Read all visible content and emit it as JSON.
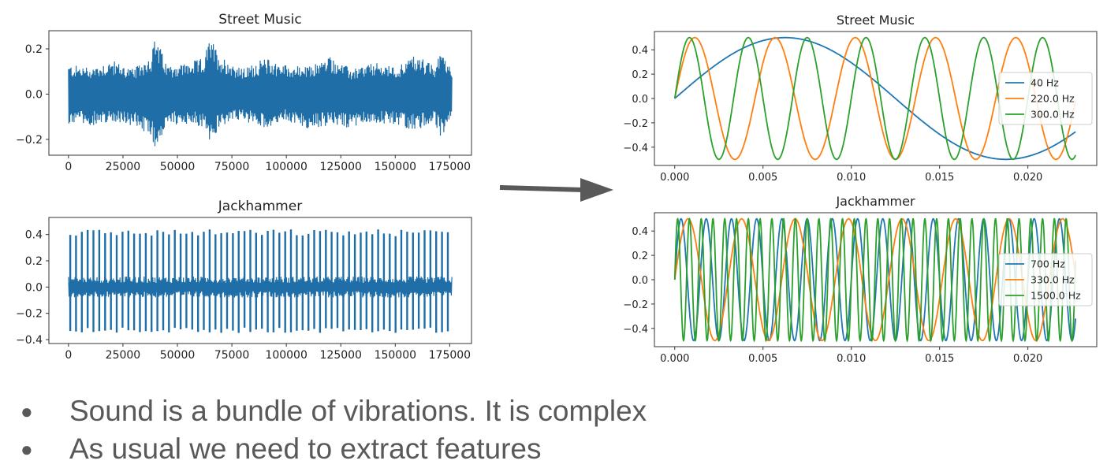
{
  "colors": {
    "waveform": "#1f6ea8",
    "c_blue": "#1f77b4",
    "c_orange": "#ff7f0e",
    "c_green": "#2ca02c",
    "arrow": "#595959",
    "bullet_text": "#595959"
  },
  "arrow_icon": "right-arrow-icon",
  "chart_data": [
    {
      "type": "line",
      "title": "Street Music",
      "xlabel": "",
      "ylabel": "",
      "xlim": [
        -9000,
        185000
      ],
      "ylim": [
        -0.27,
        0.28
      ],
      "xticks": [
        0,
        25000,
        50000,
        75000,
        100000,
        125000,
        150000,
        175000
      ],
      "xtick_labels": [
        "0",
        "25000",
        "50000",
        "75000",
        "100000",
        "125000",
        "150000",
        "175000"
      ],
      "yticks": [
        0.2,
        0.0,
        -0.2
      ],
      "ytick_labels": [
        "0.2",
        "0.0",
        "−0.2"
      ],
      "series": [
        {
          "color": "#1f6ea8",
          "envelope": {
            "x": [
              0,
              10000,
              20000,
              30000,
              38000,
              40000,
              45000,
              55000,
              62000,
              65000,
              70000,
              80000,
              90000,
              100000,
              110000,
              120000,
              130000,
              140000,
              150000,
              160000,
              168000,
              172000,
              176000
            ],
            "upper": [
              0.13,
              0.12,
              0.15,
              0.11,
              0.18,
              0.26,
              0.13,
              0.14,
              0.16,
              0.25,
              0.17,
              0.11,
              0.16,
              0.13,
              0.12,
              0.17,
              0.11,
              0.14,
              0.12,
              0.18,
              0.12,
              0.21,
              0.09
            ],
            "lower": [
              -0.13,
              -0.14,
              -0.12,
              -0.14,
              -0.2,
              -0.24,
              -0.14,
              -0.13,
              -0.15,
              -0.23,
              -0.14,
              -0.12,
              -0.15,
              -0.12,
              -0.16,
              -0.14,
              -0.15,
              -0.13,
              -0.14,
              -0.16,
              -0.13,
              -0.21,
              -0.08
            ]
          }
        }
      ]
    },
    {
      "type": "line",
      "title": "Jackhammer",
      "xlabel": "",
      "ylabel": "",
      "xlim": [
        -9000,
        185000
      ],
      "ylim": [
        -0.43,
        0.53
      ],
      "xticks": [
        0,
        25000,
        50000,
        75000,
        100000,
        125000,
        150000,
        175000
      ],
      "xtick_labels": [
        "0",
        "25000",
        "50000",
        "75000",
        "100000",
        "125000",
        "150000",
        "175000"
      ],
      "yticks": [
        0.4,
        0.2,
        0.0,
        -0.2,
        -0.4
      ],
      "ytick_labels": [
        "0.4",
        "0.2",
        "0.0",
        "−0.2",
        "−0.4"
      ],
      "series": [
        {
          "color": "#1f6ea8",
          "impulse_count": 66,
          "impulse_peak": 0.44,
          "impulse_trough": -0.35,
          "noise_band": 0.08
        }
      ]
    },
    {
      "type": "line",
      "title": "Street Music",
      "xlabel": "",
      "ylabel": "",
      "xlim": [
        -0.00115,
        0.0239
      ],
      "ylim": [
        -0.55,
        0.55
      ],
      "xticks": [
        0.0,
        0.005,
        0.01,
        0.015,
        0.02
      ],
      "xtick_labels": [
        "0.000",
        "0.005",
        "0.010",
        "0.015",
        "0.020"
      ],
      "yticks": [
        0.4,
        0.2,
        0.0,
        -0.2,
        -0.4
      ],
      "ytick_labels": [
        "0.4",
        "0.2",
        "0.0",
        "−0.2",
        "−0.4"
      ],
      "legend_position": "center-right",
      "series": [
        {
          "name": "40 Hz",
          "frequency": 40,
          "amplitude": 0.5,
          "color": "#1f77b4"
        },
        {
          "name": "220.0 Hz",
          "frequency": 220,
          "amplitude": 0.5,
          "color": "#ff7f0e"
        },
        {
          "name": "300.0 Hz",
          "frequency": 300,
          "amplitude": 0.5,
          "color": "#2ca02c"
        }
      ],
      "x_range": [
        0.0,
        0.0227
      ]
    },
    {
      "type": "line",
      "title": "Jackhammer",
      "xlabel": "",
      "ylabel": "",
      "xlim": [
        -0.00115,
        0.0239
      ],
      "ylim": [
        -0.55,
        0.55
      ],
      "xticks": [
        0.0,
        0.005,
        0.01,
        0.015,
        0.02
      ],
      "xtick_labels": [
        "0.000",
        "0.005",
        "0.010",
        "0.015",
        "0.020"
      ],
      "yticks": [
        0.4,
        0.2,
        0.0,
        -0.2,
        -0.4
      ],
      "ytick_labels": [
        "0.4",
        "0.2",
        "0.0",
        "−0.2",
        "−0.4"
      ],
      "legend_position": "center-right",
      "series": [
        {
          "name": "700 Hz",
          "frequency": 700,
          "amplitude": 0.5,
          "color": "#1f77b4"
        },
        {
          "name": "330.0 Hz",
          "frequency": 330,
          "amplitude": 0.5,
          "color": "#ff7f0e"
        },
        {
          "name": "1500.0 Hz",
          "frequency": 1500,
          "amplitude": 0.5,
          "color": "#2ca02c"
        }
      ],
      "x_range": [
        0.0,
        0.0227
      ]
    }
  ],
  "bullets": [
    {
      "icon": "bullet-dot-icon",
      "symbol": "●",
      "text": "Sound is a bundle of vibrations. It is complex"
    },
    {
      "icon": "bullet-dot-icon",
      "symbol": "●",
      "text": "As usual we need to extract features"
    }
  ]
}
